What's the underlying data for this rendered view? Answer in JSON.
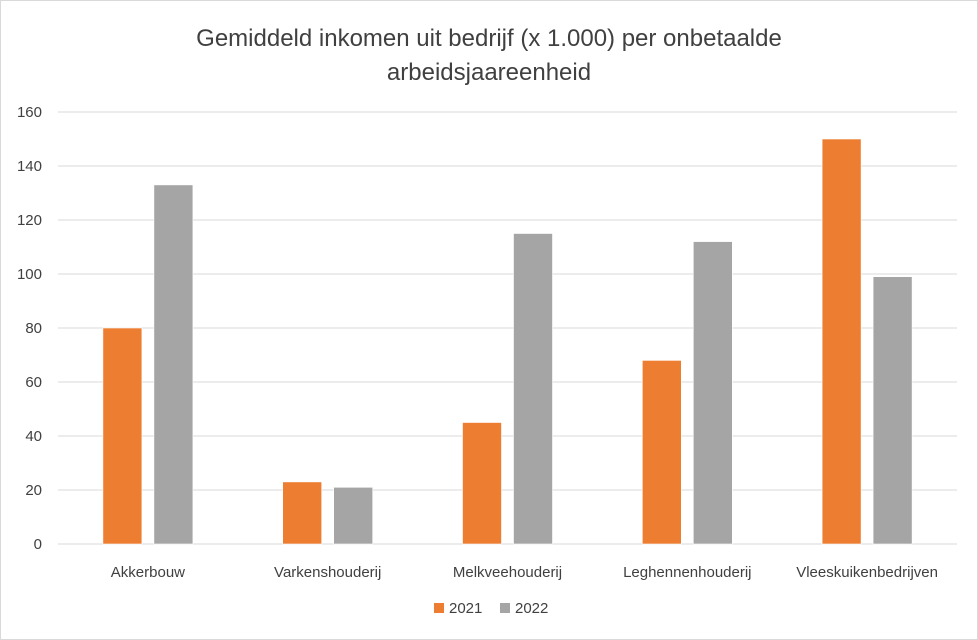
{
  "chart_data": {
    "type": "bar",
    "title": "Gemiddeld inkomen uit bedrijf (x 1.000) per onbetaalde arbeidsjaareenheid",
    "title_lines": [
      "Gemiddeld inkomen uit bedrijf (x 1.000) per onbetaalde",
      "arbeidsjaareenheid"
    ],
    "categories": [
      "Akkerbouw",
      "Varkenshouderij",
      "Melkveehouderij",
      "Leghennenhouderij",
      "Vleeskuikenbedrijven"
    ],
    "series": [
      {
        "name": "2021",
        "values": [
          80,
          23,
          45,
          68,
          150
        ],
        "color": "#ed7d31"
      },
      {
        "name": "2022",
        "values": [
          133,
          21,
          115,
          112,
          99
        ],
        "color": "#a5a5a5"
      }
    ],
    "ylim": [
      0,
      160
    ],
    "yticks": [
      0,
      20,
      40,
      60,
      80,
      100,
      120,
      140,
      160
    ],
    "grid": true,
    "legend_position": "bottom",
    "xlabel": "",
    "ylabel": ""
  }
}
